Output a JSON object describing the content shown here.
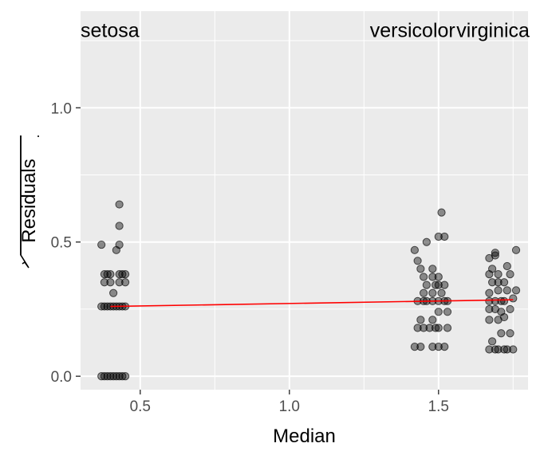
{
  "chart_data": {
    "type": "scatter",
    "title": "",
    "xlabel": "Median",
    "ylabel": "Residuals",
    "xlim": [
      0.3,
      1.8
    ],
    "ylim": [
      -0.05,
      1.36
    ],
    "x_ticks": [
      {
        "value": 0.5,
        "label": "0.5"
      },
      {
        "value": 1.0,
        "label": "1.0"
      },
      {
        "value": 1.5,
        "label": "1.5"
      }
    ],
    "y_ticks": [
      {
        "value": 0.0,
        "label": "0.0"
      },
      {
        "value": 0.5,
        "label": "0.5"
      },
      {
        "value": 1.0,
        "label": "1.0"
      }
    ],
    "x_minor": [
      0.75,
      1.25,
      1.75
    ],
    "y_minor": [
      0.25,
      0.75,
      1.25
    ],
    "grid": true,
    "colors": {
      "panel": "#ebebeb",
      "grid": "#ffffff",
      "point": "#000000",
      "trend": "#ff0000"
    },
    "group_labels": [
      {
        "text": "setosa",
        "x": 0.3,
        "y": 1.29
      },
      {
        "text": "versicolor",
        "x": 1.27,
        "y": 1.29
      },
      {
        "text": "virginica",
        "x": 1.56,
        "y": 1.29
      }
    ],
    "trend_line": {
      "x": [
        0.4,
        1.75
      ],
      "y": [
        0.26,
        0.285
      ]
    },
    "series": [
      {
        "group": "setosa",
        "points": [
          [
            0.37,
            0.0
          ],
          [
            0.38,
            0.0
          ],
          [
            0.39,
            0.0
          ],
          [
            0.4,
            0.0
          ],
          [
            0.41,
            0.0
          ],
          [
            0.42,
            0.0
          ],
          [
            0.43,
            0.0
          ],
          [
            0.44,
            0.0
          ],
          [
            0.45,
            0.0
          ],
          [
            0.37,
            0.26
          ],
          [
            0.38,
            0.26
          ],
          [
            0.39,
            0.26
          ],
          [
            0.4,
            0.26
          ],
          [
            0.41,
            0.26
          ],
          [
            0.42,
            0.26
          ],
          [
            0.43,
            0.26
          ],
          [
            0.44,
            0.26
          ],
          [
            0.45,
            0.26
          ],
          [
            0.38,
            0.35
          ],
          [
            0.4,
            0.35
          ],
          [
            0.43,
            0.35
          ],
          [
            0.45,
            0.35
          ],
          [
            0.38,
            0.38
          ],
          [
            0.39,
            0.38
          ],
          [
            0.4,
            0.38
          ],
          [
            0.43,
            0.38
          ],
          [
            0.44,
            0.38
          ],
          [
            0.45,
            0.38
          ],
          [
            0.37,
            0.49
          ],
          [
            0.42,
            0.47
          ],
          [
            0.43,
            0.49
          ],
          [
            0.41,
            0.31
          ],
          [
            0.43,
            0.56
          ],
          [
            0.43,
            0.64
          ]
        ]
      },
      {
        "group": "versicolor",
        "points": [
          [
            1.42,
            0.11
          ],
          [
            1.44,
            0.11
          ],
          [
            1.48,
            0.11
          ],
          [
            1.5,
            0.11
          ],
          [
            1.52,
            0.11
          ],
          [
            1.43,
            0.18
          ],
          [
            1.45,
            0.18
          ],
          [
            1.47,
            0.18
          ],
          [
            1.49,
            0.18
          ],
          [
            1.5,
            0.18
          ],
          [
            1.53,
            0.18
          ],
          [
            1.44,
            0.21
          ],
          [
            1.48,
            0.21
          ],
          [
            1.5,
            0.24
          ],
          [
            1.53,
            0.24
          ],
          [
            1.43,
            0.28
          ],
          [
            1.45,
            0.28
          ],
          [
            1.46,
            0.28
          ],
          [
            1.48,
            0.28
          ],
          [
            1.5,
            0.28
          ],
          [
            1.52,
            0.28
          ],
          [
            1.53,
            0.28
          ],
          [
            1.45,
            0.31
          ],
          [
            1.48,
            0.31
          ],
          [
            1.51,
            0.31
          ],
          [
            1.46,
            0.34
          ],
          [
            1.49,
            0.34
          ],
          [
            1.5,
            0.34
          ],
          [
            1.52,
            0.34
          ],
          [
            1.45,
            0.37
          ],
          [
            1.48,
            0.37
          ],
          [
            1.5,
            0.37
          ],
          [
            1.44,
            0.4
          ],
          [
            1.43,
            0.43
          ],
          [
            1.48,
            0.4
          ],
          [
            1.42,
            0.47
          ],
          [
            1.46,
            0.5
          ],
          [
            1.5,
            0.52
          ],
          [
            1.52,
            0.52
          ],
          [
            1.51,
            0.61
          ]
        ]
      },
      {
        "group": "virginica",
        "points": [
          [
            1.67,
            0.1
          ],
          [
            1.69,
            0.1
          ],
          [
            1.7,
            0.1
          ],
          [
            1.72,
            0.1
          ],
          [
            1.73,
            0.1
          ],
          [
            1.75,
            0.1
          ],
          [
            1.68,
            0.13
          ],
          [
            1.71,
            0.16
          ],
          [
            1.74,
            0.16
          ],
          [
            1.67,
            0.21
          ],
          [
            1.7,
            0.21
          ],
          [
            1.72,
            0.22
          ],
          [
            1.67,
            0.25
          ],
          [
            1.69,
            0.25
          ],
          [
            1.71,
            0.24
          ],
          [
            1.74,
            0.25
          ],
          [
            1.67,
            0.28
          ],
          [
            1.69,
            0.28
          ],
          [
            1.71,
            0.28
          ],
          [
            1.72,
            0.28
          ],
          [
            1.75,
            0.29
          ],
          [
            1.67,
            0.31
          ],
          [
            1.7,
            0.32
          ],
          [
            1.73,
            0.32
          ],
          [
            1.76,
            0.32
          ],
          [
            1.68,
            0.35
          ],
          [
            1.7,
            0.35
          ],
          [
            1.72,
            0.35
          ],
          [
            1.67,
            0.38
          ],
          [
            1.7,
            0.38
          ],
          [
            1.74,
            0.38
          ],
          [
            1.68,
            0.4
          ],
          [
            1.73,
            0.41
          ],
          [
            1.67,
            0.44
          ],
          [
            1.69,
            0.45
          ],
          [
            1.69,
            0.46
          ],
          [
            1.76,
            0.47
          ]
        ]
      }
    ]
  }
}
